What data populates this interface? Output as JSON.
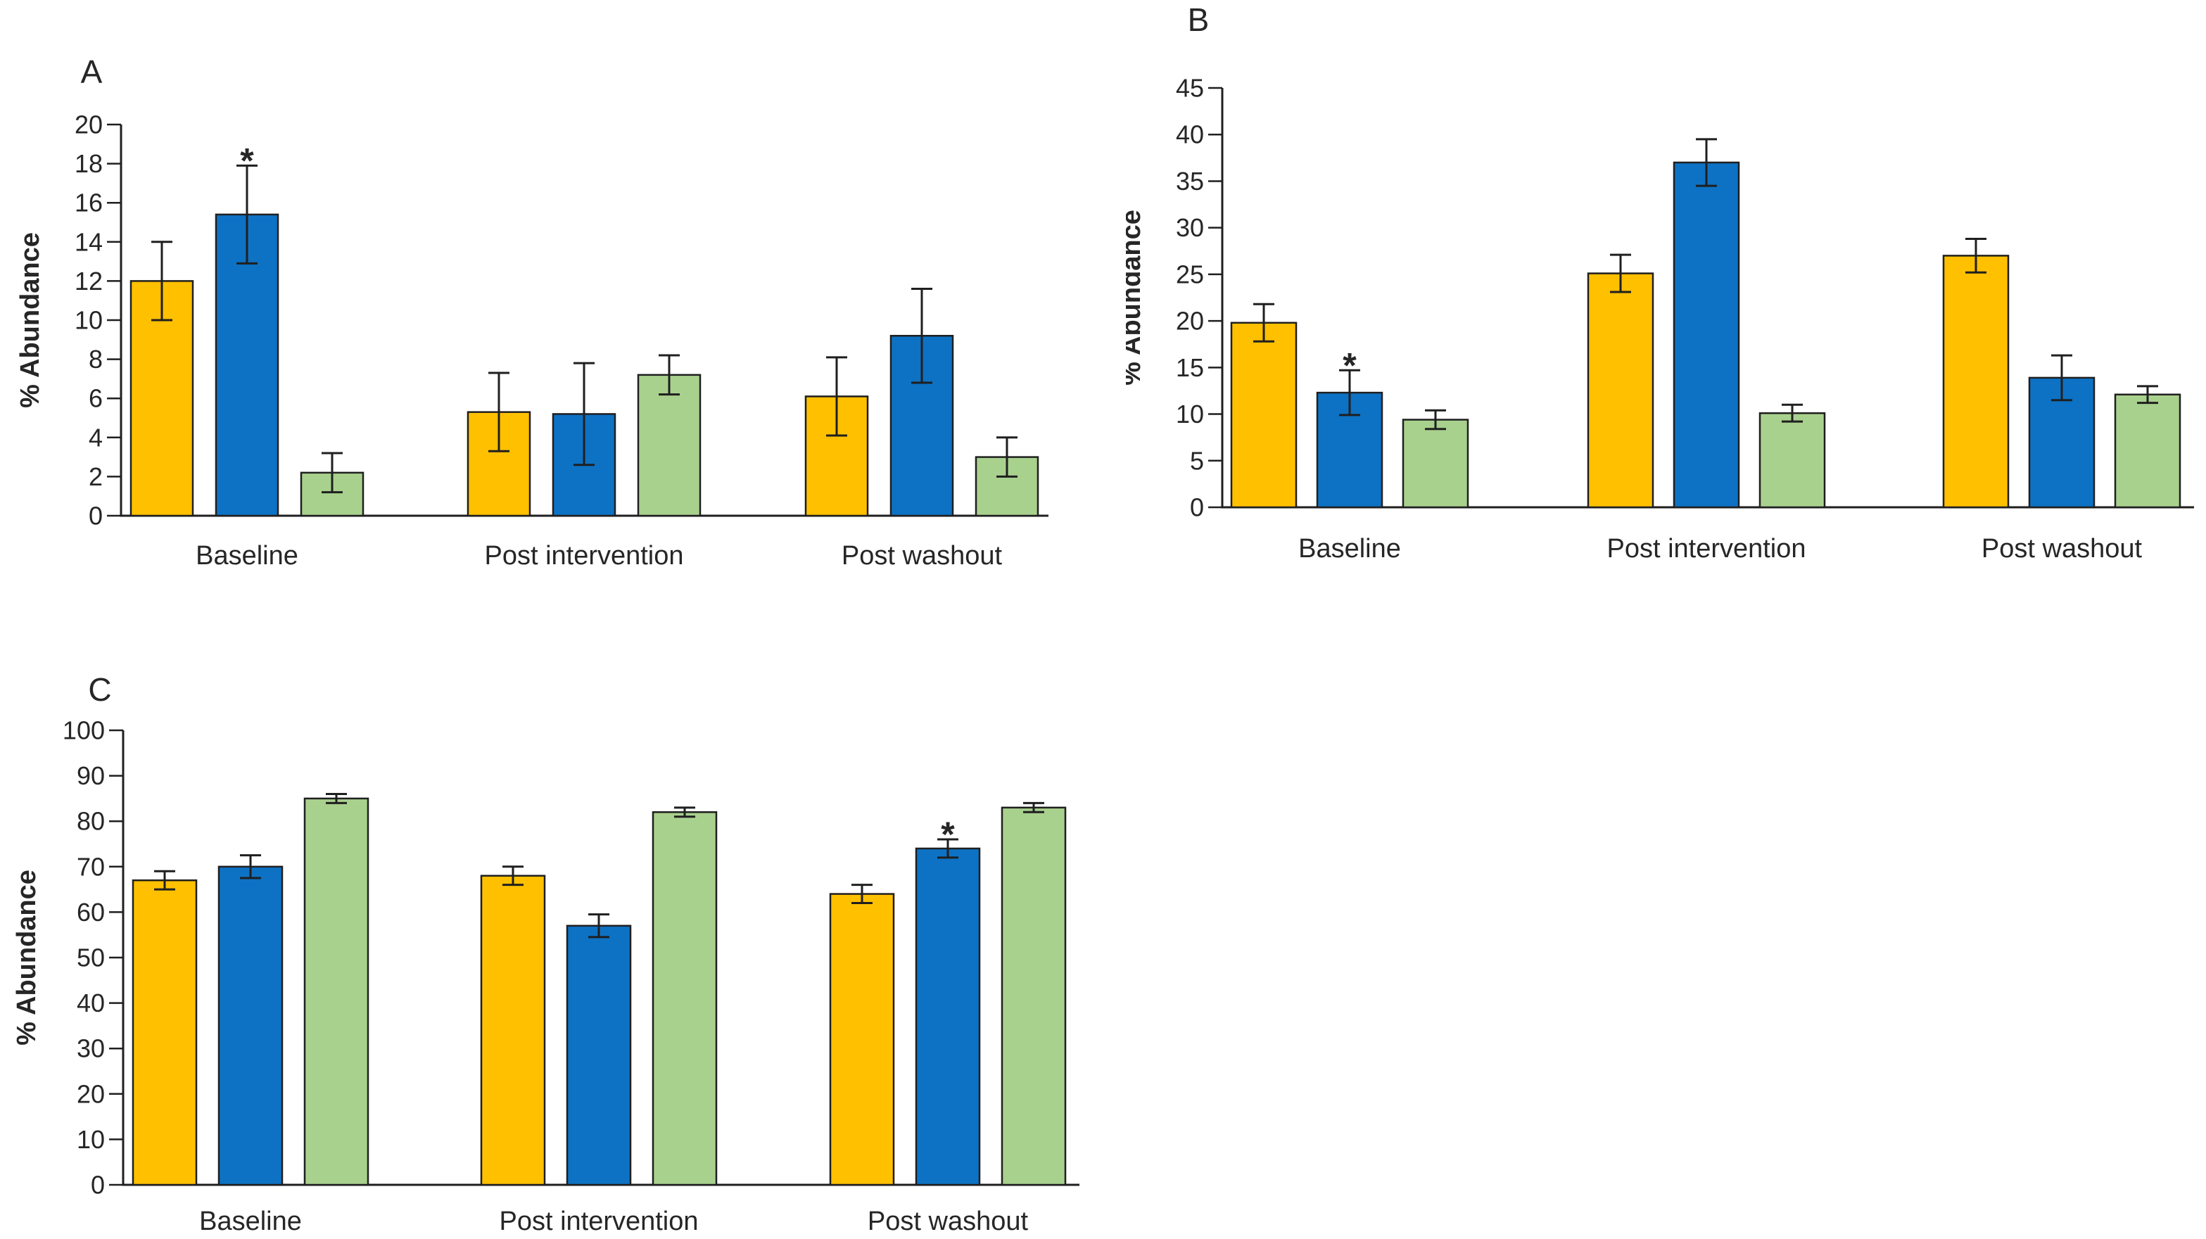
{
  "figure": {
    "background": "#ffffff",
    "text_color": "#262626",
    "line_color": "#1f1f1f"
  },
  "chart_data": [
    {
      "id": "A",
      "panel_label": "A",
      "type": "bar",
      "ylabel": "% Abundance",
      "xlabel": "",
      "ylim": [
        0,
        20
      ],
      "ytick_step": 2,
      "grid": false,
      "legend": "none",
      "categories": [
        "Baseline",
        "Post intervention",
        "Post washout"
      ],
      "series": [
        {
          "name": "Gold",
          "color": "#FFC000",
          "values": [
            12.0,
            5.3,
            6.1
          ],
          "errors": [
            2.0,
            2.0,
            2.0
          ]
        },
        {
          "name": "Blue",
          "color": "#0D72C4",
          "values": [
            15.4,
            5.2,
            9.2
          ],
          "errors": [
            2.5,
            2.6,
            2.4
          ]
        },
        {
          "name": "Green",
          "color": "#A9D18E",
          "values": [
            2.2,
            7.2,
            3.0
          ],
          "errors": [
            1.0,
            1.0,
            1.0
          ]
        }
      ],
      "annotations": [
        {
          "category_index": 0,
          "series_index": 1,
          "text": "*"
        }
      ]
    },
    {
      "id": "B",
      "panel_label": "B",
      "type": "bar",
      "ylabel": "% Abundance",
      "xlabel": "",
      "ylim": [
        0,
        45
      ],
      "ytick_step": 5,
      "grid": false,
      "legend": "none",
      "categories": [
        "Baseline",
        "Post intervention",
        "Post washout"
      ],
      "series": [
        {
          "name": "Gold",
          "color": "#FFC000",
          "values": [
            19.8,
            25.1,
            27.0
          ],
          "errors": [
            2.0,
            2.0,
            1.8
          ]
        },
        {
          "name": "Blue",
          "color": "#0D72C4",
          "values": [
            12.3,
            37.0,
            13.9
          ],
          "errors": [
            2.4,
            2.5,
            2.4
          ]
        },
        {
          "name": "Green",
          "color": "#A9D18E",
          "values": [
            9.4,
            10.1,
            12.1
          ],
          "errors": [
            1.0,
            0.9,
            0.9
          ]
        }
      ],
      "annotations": [
        {
          "category_index": 0,
          "series_index": 1,
          "text": "*"
        }
      ]
    },
    {
      "id": "C",
      "panel_label": "C",
      "type": "bar",
      "ylabel": "% Abundance",
      "xlabel": "",
      "ylim": [
        0,
        100
      ],
      "ytick_step": 10,
      "grid": false,
      "legend": "none",
      "categories": [
        "Baseline",
        "Post intervention",
        "Post washout"
      ],
      "series": [
        {
          "name": "Gold",
          "color": "#FFC000",
          "values": [
            67.0,
            68.0,
            64.0
          ],
          "errors": [
            2.0,
            2.0,
            2.0
          ]
        },
        {
          "name": "Blue",
          "color": "#0D72C4",
          "values": [
            70.0,
            57.0,
            74.0
          ],
          "errors": [
            2.5,
            2.5,
            2.0
          ]
        },
        {
          "name": "Green",
          "color": "#A9D18E",
          "values": [
            85.0,
            82.0,
            83.0
          ],
          "errors": [
            1.0,
            1.0,
            1.0
          ]
        }
      ],
      "annotations": [
        {
          "category_index": 2,
          "series_index": 1,
          "text": "*"
        }
      ]
    }
  ]
}
